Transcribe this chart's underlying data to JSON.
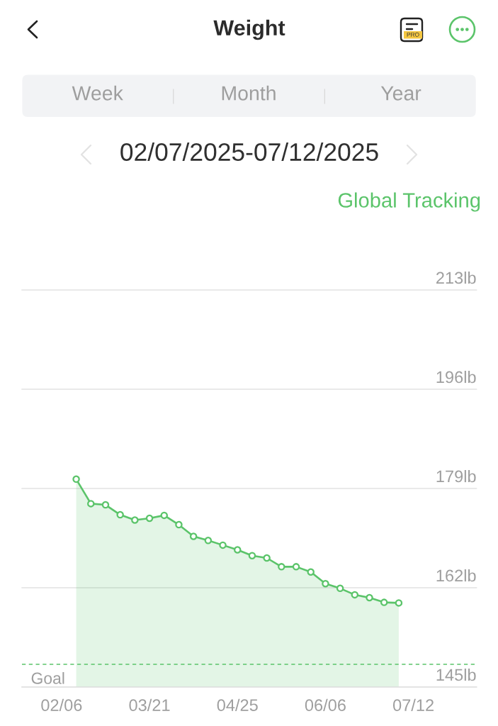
{
  "chart_data": {
    "type": "area",
    "title": "Weight",
    "subtitle": "02/07/2025-07/12/2025",
    "annotations": [
      "Week",
      "Month",
      "Year",
      "Global Tracking",
      "PRO"
    ],
    "categories": [
      "02/06",
      null,
      null,
      null,
      null,
      null,
      "03/21",
      null,
      null,
      null,
      null,
      null,
      "04/25",
      null,
      null,
      null,
      null,
      null,
      "06/06",
      null,
      null,
      null,
      null,
      null,
      "07/12"
    ],
    "series": [
      {
        "color": "#5bc46a",
        "values": [
          null,
          180.6,
          176.4,
          176.2,
          174.5,
          173.6,
          173.9,
          174.4,
          172.8,
          170.8,
          170.1,
          169.3,
          168.5,
          167.5,
          167.1,
          165.6,
          165.6,
          164.7,
          162.7,
          161.9,
          160.8,
          160.3,
          159.5,
          159.4,
          null
        ]
      }
    ],
    "ylim": [
      145,
      213
    ],
    "yticks": [
      {
        "value": 145,
        "label": "145lb"
      },
      {
        "value": 162,
        "label": "162lb"
      },
      {
        "value": 179,
        "label": "179lb"
      },
      {
        "value": 196,
        "label": "196lb"
      },
      {
        "value": 213,
        "label": "213lb"
      }
    ],
    "ref_lines": [
      {
        "axis": "y",
        "value": 148.9,
        "label": "Goal",
        "color": "#5bc46a",
        "line_style": "dashed"
      }
    ],
    "grid": "y",
    "marker": "circle",
    "line_style": "solid"
  }
}
